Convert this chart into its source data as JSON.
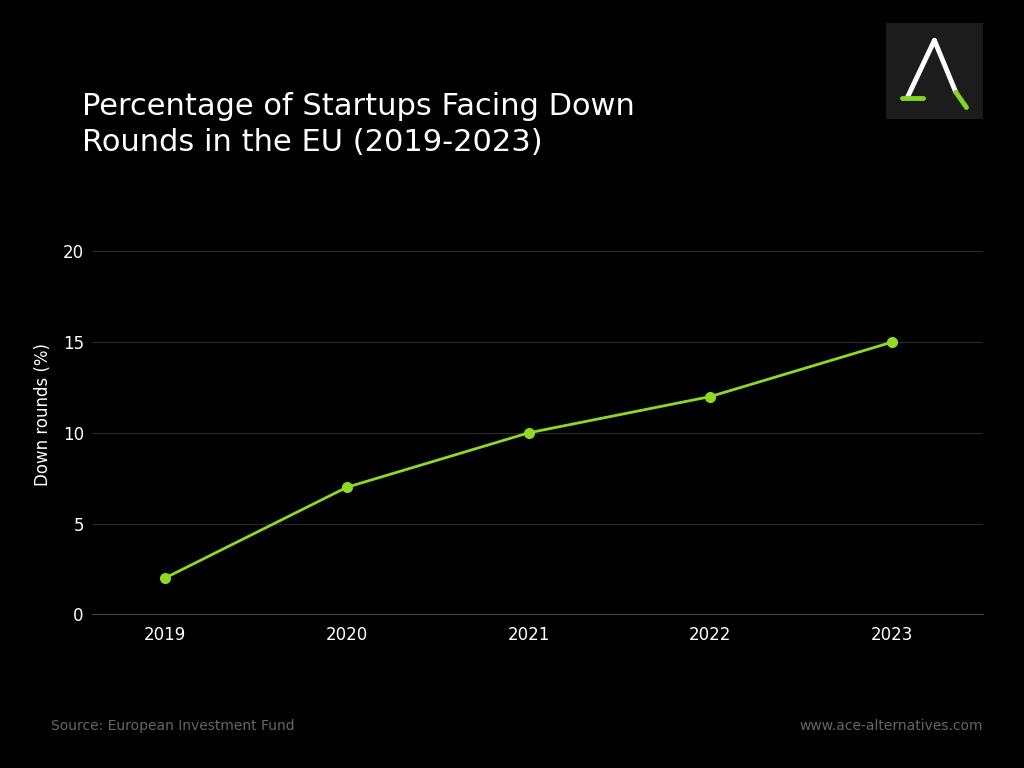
{
  "title": "Percentage of Startups Facing Down\nRounds in the EU (2019-2023)",
  "xlabel": "",
  "ylabel": "Down rounds (%)",
  "years": [
    2019,
    2020,
    2021,
    2022,
    2023
  ],
  "values": [
    2,
    7,
    10,
    12,
    15
  ],
  "line_color": "#8FD926",
  "marker_color": "#8FD926",
  "background_color": "#000000",
  "text_color": "#ffffff",
  "grid_color": "#2a2a2a",
  "axis_color": "#444444",
  "source_text": "Source: European Investment Fund",
  "website_text": "www.ace-alternatives.com",
  "ylim": [
    0,
    22
  ],
  "yticks": [
    0,
    5,
    10,
    15,
    20
  ],
  "title_fontsize": 22,
  "label_fontsize": 12,
  "tick_fontsize": 12,
  "footer_fontsize": 10,
  "line_width": 2.0,
  "marker_size": 7,
  "logo_box_color": "#1c1c1c",
  "logo_white": "#ffffff",
  "logo_green": "#7FD626"
}
